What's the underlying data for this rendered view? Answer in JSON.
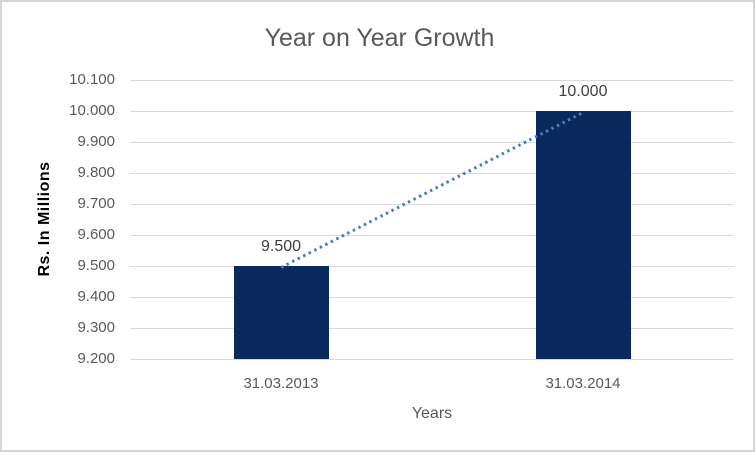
{
  "chart_data": {
    "type": "bar",
    "title": "Year on Year Growth",
    "xlabel": "Years",
    "ylabel": "Rs. In Millions",
    "categories": [
      "31.03.2013",
      "31.03.2014"
    ],
    "values": [
      9.5,
      10.0
    ],
    "data_labels": [
      "9.500",
      "10.000"
    ],
    "yticks": [
      "10.100",
      "10.000",
      "9.900",
      "9.800",
      "9.700",
      "9.600",
      "9.500",
      "9.400",
      "9.300",
      "9.200"
    ],
    "ylim": [
      9.2,
      10.1
    ],
    "grid": true,
    "legend": "none",
    "trendline": {
      "style": "dotted",
      "from_value": 9.5,
      "to_value": 10.0
    },
    "colors": {
      "bar": "#0a2a5e",
      "trendline": "#4a7ec2",
      "gridline": "#d9d9d9",
      "axis_text": "#595959",
      "data_label": "#404040",
      "title_text": "#595959",
      "y_axis_title_text": "#000000"
    }
  }
}
